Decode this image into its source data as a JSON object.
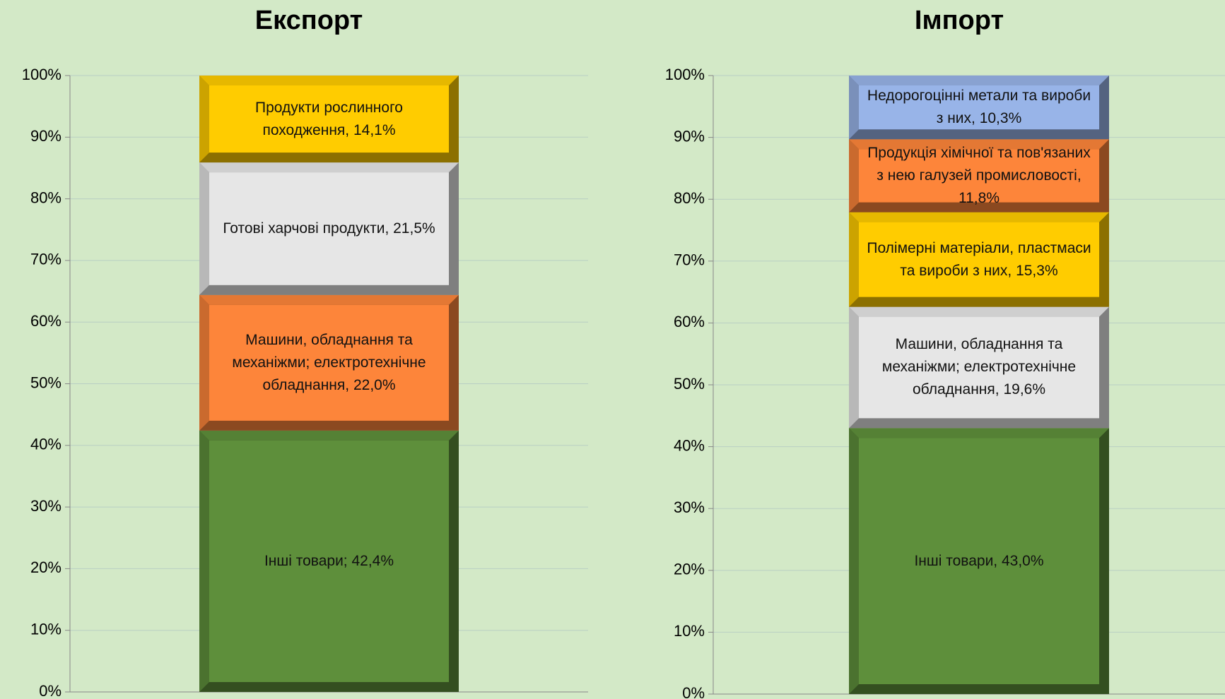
{
  "chart_data": [
    {
      "type": "bar",
      "stacked": true,
      "title": "Експорт",
      "categories": [
        null
      ],
      "ylim": [
        0,
        100
      ],
      "yticks": [
        {
          "value": 0,
          "label": "0%"
        },
        {
          "value": 10,
          "label": "10%"
        },
        {
          "value": 20,
          "label": "20%"
        },
        {
          "value": 30,
          "label": "30%"
        },
        {
          "value": 40,
          "label": "40%"
        },
        {
          "value": 50,
          "label": "50%"
        },
        {
          "value": 60,
          "label": "60%"
        },
        {
          "value": 70,
          "label": "70%"
        },
        {
          "value": 80,
          "label": "80%"
        },
        {
          "value": 90,
          "label": "90%"
        },
        {
          "value": 100,
          "label": "100%"
        }
      ],
      "grid": true,
      "series": [
        {
          "name": "Інші товари;",
          "color": "#5e8f3b",
          "values": [
            42.4
          ],
          "value_labels": [
            "42,4%"
          ]
        },
        {
          "name": "Машини, обладнання та механіжми; електротехнічне обладнання,",
          "color": "#fd853a",
          "values": [
            22.0
          ],
          "value_labels": [
            "22,0%"
          ]
        },
        {
          "name": "Готові харчові продукти,",
          "color": "#e6e6e6",
          "values": [
            21.5
          ],
          "value_labels": [
            "21,5%"
          ]
        },
        {
          "name": "Продукти рослинного походження,",
          "color": "#ffcc00",
          "values": [
            14.1
          ],
          "value_labels": [
            "14,1%"
          ]
        }
      ]
    },
    {
      "type": "bar",
      "stacked": true,
      "title": "Імпорт",
      "categories": [
        null
      ],
      "ylim": [
        0,
        100
      ],
      "yticks": [
        {
          "value": 0,
          "label": "0%"
        },
        {
          "value": 10,
          "label": "10%"
        },
        {
          "value": 20,
          "label": "20%"
        },
        {
          "value": 30,
          "label": "30%"
        },
        {
          "value": 40,
          "label": "40%"
        },
        {
          "value": 50,
          "label": "50%"
        },
        {
          "value": 60,
          "label": "60%"
        },
        {
          "value": 70,
          "label": "70%"
        },
        {
          "value": 80,
          "label": "80%"
        },
        {
          "value": 90,
          "label": "90%"
        },
        {
          "value": 100,
          "label": "100%"
        }
      ],
      "grid": true,
      "series": [
        {
          "name": "Інші товари,",
          "color": "#5e8f3b",
          "values": [
            43.0
          ],
          "value_labels": [
            "43,0%"
          ]
        },
        {
          "name": "Машини, обладнання та механіжми; електротехнічне обладнання,",
          "color": "#e6e6e6",
          "values": [
            19.6
          ],
          "value_labels": [
            "19,6%"
          ]
        },
        {
          "name": "Полімерні матеріали, пластмаси та вироби з них,",
          "color": "#ffcc00",
          "values": [
            15.3
          ],
          "value_labels": [
            "15,3%"
          ]
        },
        {
          "name": "Продукція хімічної та пов'язаних з нею галузей промисловості,",
          "color": "#fd853a",
          "values": [
            11.8
          ],
          "value_labels": [
            "11,8%"
          ]
        },
        {
          "name": "Недорогоцінні метали та вироби з них,",
          "color": "#98b4e8",
          "values": [
            10.3
          ],
          "value_labels": [
            "10,3%"
          ]
        }
      ]
    }
  ]
}
